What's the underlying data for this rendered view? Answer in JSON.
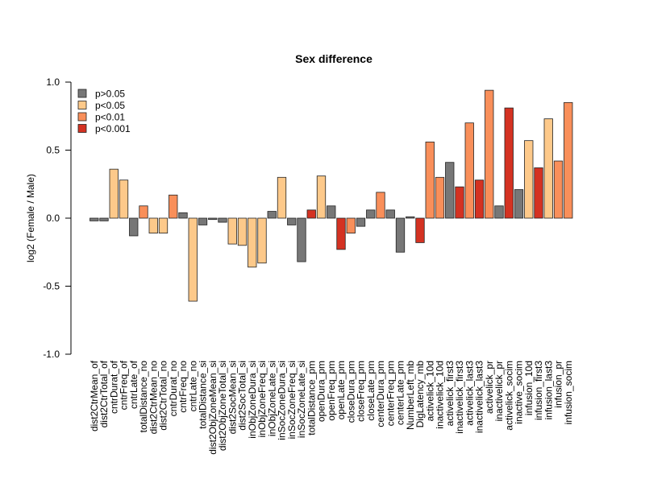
{
  "chart_data": {
    "type": "bar",
    "title": "Sex difference",
    "xlabel": "",
    "ylabel": "log2 (Female / Male)",
    "ylim": [
      -1.0,
      1.0
    ],
    "yticks": [
      "-1.0",
      "-0.5",
      "0.0",
      "0.5",
      "1.0"
    ],
    "legend": {
      "placement": "top-left",
      "entries": [
        {
          "label": "p>0.05",
          "color": "#777777"
        },
        {
          "label": "p<0.05",
          "color": "#FDC98A"
        },
        {
          "label": "p<0.01",
          "color": "#F98F5A"
        },
        {
          "label": "p<0.001",
          "color": "#D43222"
        }
      ]
    },
    "categories": [
      "dist2CtrMean_of",
      "dist2CtrTotal_of",
      "cntrDurat_of",
      "cntrFreq_of",
      "cntrLate_of",
      "totalDistance_no",
      "dist2CtrMean_no",
      "dist2CtrTotal_no",
      "cntrDurat_no",
      "cntrFreq_no",
      "cntrLate_no",
      "totalDistance_si",
      "dist2ObjZoneMean_si",
      "dist2ObjZoneTotal_si",
      "dist2SocMean_si",
      "dist2SocTotal_si",
      "inObjZoneDura_si",
      "inObjZoneFreq_si",
      "inObjZoneLate_si",
      "inSocZoneDura_si",
      "inSocZoneFreq_si",
      "inSocZoneLate_si",
      "totalDistance_pm",
      "openDura_pm",
      "openFreq_pm",
      "openLate_pm",
      "closeDura_pm",
      "closeFreq_pm",
      "closeLate_pm",
      "centerDura_pm",
      "centerFreq_pm",
      "centerLate_pm",
      "NumberLeft_mb",
      "DigLatency_mb",
      "activelick_10d",
      "inactivelick_10d",
      "activelick_first3",
      "inactivelick_first3",
      "activelick_last3",
      "inactivelick_last3",
      "activelick_pr",
      "inactivelick_pr",
      "activelick_socim",
      "inactive_socim",
      "infusion_10d",
      "infusion_first3",
      "infusion_last3",
      "infusion_pr",
      "infusion_socim"
    ],
    "values": [
      -0.02,
      -0.02,
      0.36,
      0.28,
      -0.13,
      0.09,
      -0.11,
      -0.11,
      0.17,
      0.04,
      -0.61,
      -0.05,
      -0.01,
      -0.03,
      -0.19,
      -0.2,
      -0.36,
      -0.33,
      0.05,
      0.3,
      -0.05,
      -0.32,
      0.06,
      0.31,
      0.09,
      -0.23,
      -0.11,
      -0.06,
      0.06,
      0.19,
      0.06,
      -0.25,
      0.01,
      -0.18,
      0.56,
      0.3,
      0.41,
      0.23,
      0.7,
      0.28,
      0.94,
      0.09,
      0.81,
      0.21,
      0.57,
      0.37,
      0.73,
      0.42,
      0.85
    ],
    "significance": [
      "p>0.05",
      "p>0.05",
      "p<0.05",
      "p<0.05",
      "p>0.05",
      "p<0.01",
      "p<0.05",
      "p<0.05",
      "p<0.01",
      "p>0.05",
      "p<0.05",
      "p>0.05",
      "p>0.05",
      "p>0.05",
      "p<0.05",
      "p<0.05",
      "p<0.05",
      "p<0.05",
      "p>0.05",
      "p<0.05",
      "p>0.05",
      "p>0.05",
      "p<0.001",
      "p<0.05",
      "p>0.05",
      "p<0.001",
      "p<0.01",
      "p>0.05",
      "p>0.05",
      "p<0.01",
      "p>0.05",
      "p>0.05",
      "p>0.05",
      "p<0.001",
      "p<0.01",
      "p<0.01",
      "p>0.05",
      "p<0.001",
      "p<0.01",
      "p<0.001",
      "p<0.01",
      "p>0.05",
      "p<0.001",
      "p>0.05",
      "p<0.05",
      "p<0.001",
      "p<0.05",
      "p<0.01",
      "p<0.01"
    ]
  }
}
